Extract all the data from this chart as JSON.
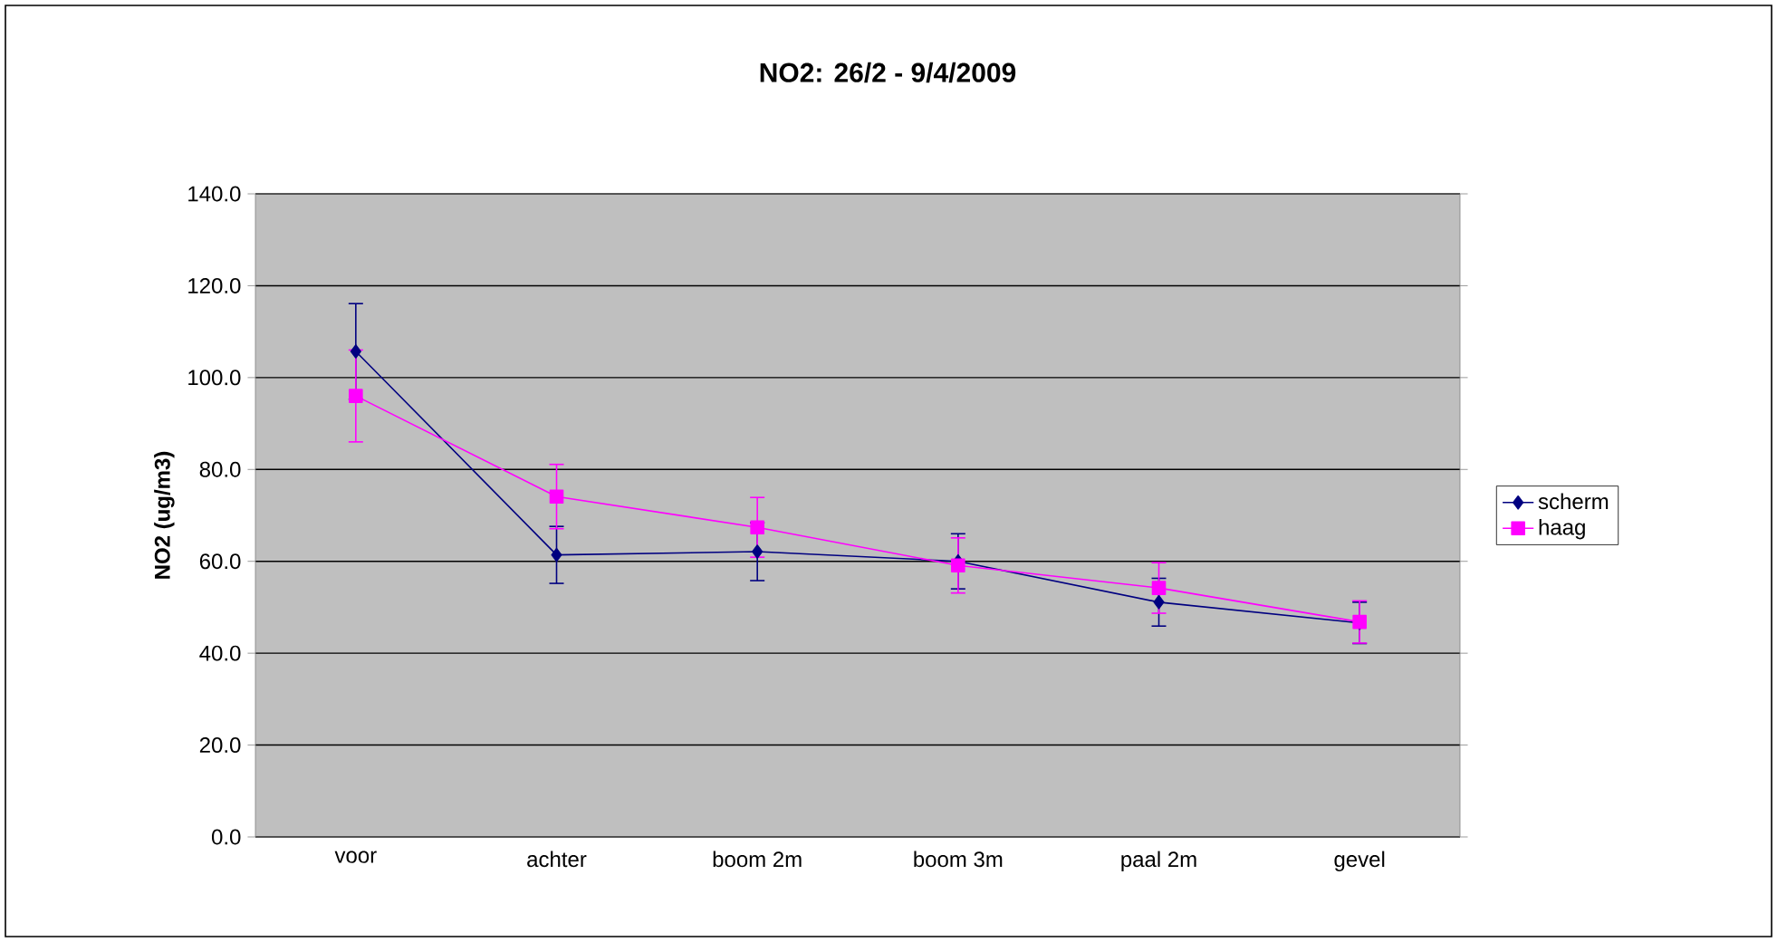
{
  "chart_data": {
    "type": "line",
    "title": "NO2: 26/2 - 9/4/2009",
    "ylabel": "NO2 (ug/m3)",
    "categories": [
      "voor",
      "achter",
      "boom 2m",
      "boom 3m",
      "paal 2m",
      "gevel"
    ],
    "series": [
      {
        "name": "scherm",
        "color": "#000080",
        "marker": "diamond",
        "values": [
          105.7,
          61.4,
          62.1,
          60.0,
          51.1,
          46.6
        ],
        "errors": [
          10.4,
          6.2,
          6.3,
          6.0,
          5.2,
          4.5
        ]
      },
      {
        "name": "haag",
        "color": "#ff00ff",
        "marker": "square",
        "values": [
          96.0,
          74.1,
          67.4,
          59.1,
          54.2,
          46.8
        ],
        "errors": [
          10.0,
          7.0,
          6.5,
          6.0,
          5.5,
          4.6
        ]
      }
    ],
    "ylim": [
      0,
      140
    ],
    "yticks": [
      {
        "value": 0,
        "label": "0.0"
      },
      {
        "value": 20,
        "label": "20.0"
      },
      {
        "value": 40,
        "label": "40.0"
      },
      {
        "value": 60,
        "label": "60.0"
      },
      {
        "value": 80,
        "label": "80.0"
      },
      {
        "value": 100,
        "label": "100.0"
      },
      {
        "value": 120,
        "label": "120.0"
      },
      {
        "value": 140,
        "label": "140.0"
      }
    ],
    "grid": "y",
    "legend": "right",
    "line_style": "solid"
  }
}
